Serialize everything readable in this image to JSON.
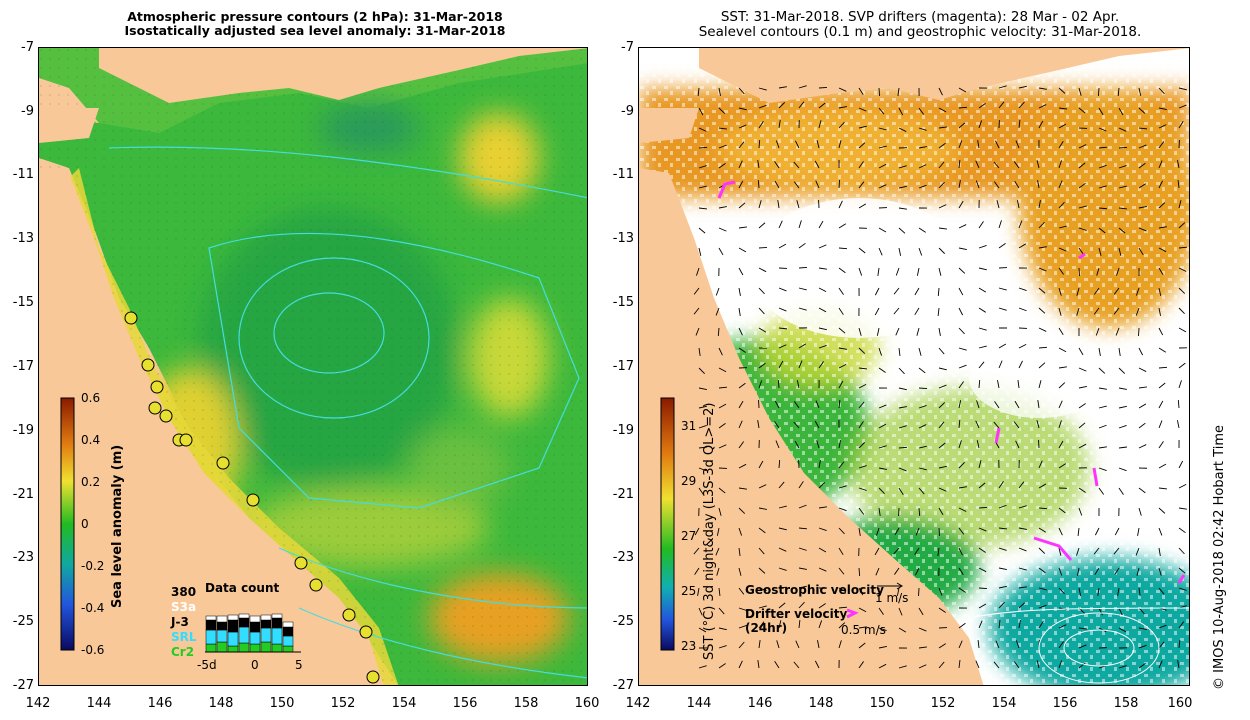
{
  "left_panel": {
    "title_line1": "Atmospheric pressure contours (2 hPa): 31-Mar-2018",
    "title_line2": "Isostatically adjusted sea level anomaly: 31-Mar-2018",
    "colorbar": {
      "label": "Sea level anomaly (m)",
      "ticks": [
        "0.6",
        "0.4",
        "0.2",
        "0",
        "-0.2",
        "-0.4",
        "-0.6"
      ]
    },
    "data_count": {
      "title": "Data count",
      "max_label": "380",
      "legend": [
        {
          "label": "S3a",
          "color": "#ffffff"
        },
        {
          "label": "J-3",
          "color": "#000000"
        },
        {
          "label": "SRL",
          "color": "#33ddff"
        },
        {
          "label": "Cr2",
          "color": "#22cc22"
        }
      ],
      "xticks": [
        "-5d",
        "0",
        "5"
      ]
    }
  },
  "right_panel": {
    "title_line1": "SST: 31-Mar-2018. SVP drifters (magenta): 28 Mar - 02 Apr.",
    "title_line2": "Sealevel contours (0.1 m) and geostrophic velocity: 31-Mar-2018.",
    "colorbar": {
      "label": "SST (°C) 3d night&day (L3S-3d QL>=2)",
      "ticks": [
        "31",
        "29",
        "27",
        "25",
        "23"
      ]
    },
    "legend": {
      "geo_label": "Geostrophic velocity",
      "geo_scale": "1 m/s",
      "drifter_label_1": "Drifter velocity",
      "drifter_label_2": "(24hr)",
      "drifter_scale": "0.5 m/s"
    }
  },
  "axes": {
    "yticks": [
      "-7",
      "-9",
      "-11",
      "-13",
      "-15",
      "-17",
      "-19",
      "-21",
      "-23",
      "-25",
      "-27"
    ],
    "xticks": [
      "142",
      "144",
      "146",
      "148",
      "150",
      "152",
      "154",
      "156",
      "158",
      "160"
    ]
  },
  "credit": "IMOS 10-Aug-2018 02:42 Hobart Time",
  "colors": {
    "land": "#f8c898",
    "sla_green": "#33bb33",
    "sla_yellow": "#e8e030",
    "sst_orange": "#e89820",
    "drifter": "#ff33ff",
    "contour": "#44dddd"
  }
}
